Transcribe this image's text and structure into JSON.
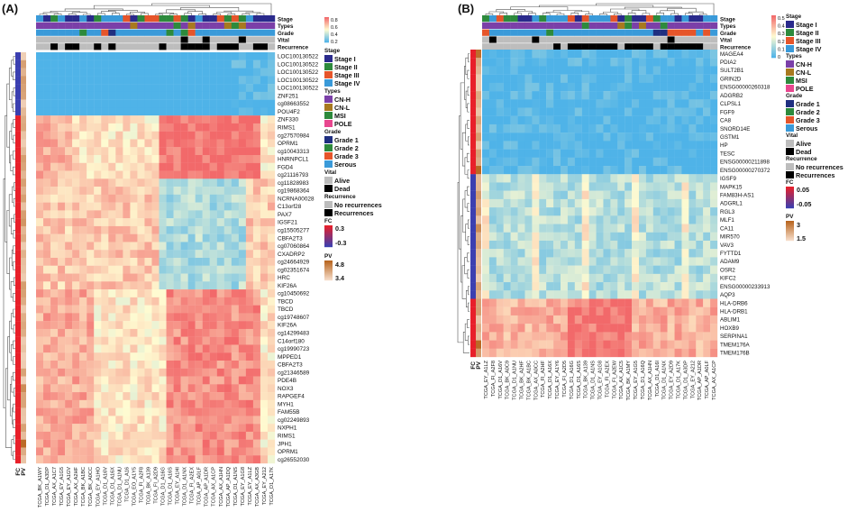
{
  "panelA": {
    "label": "(A)",
    "annotations": [
      "Stage",
      "Types",
      "Grade",
      "Vital",
      "Recurrence"
    ],
    "genes": [
      "LOC100130522",
      "LOC100130522",
      "LOC100130522",
      "LOC100130522",
      "LOC100130522",
      "ZNF251",
      "cg08663552",
      "POU4F2",
      "ZNF330",
      "RIMS1",
      "cg27570984",
      "OPRM1",
      "cg10043313",
      "HNRNPCL1",
      "FGD4",
      "cg21116793",
      "cg11828983",
      "cg19868364",
      "NCRNA00028",
      "C13orf28",
      "PAX7",
      "IGSF21",
      "cg15505277",
      "CBFA2T3",
      "cg07060864",
      "CXADRP2",
      "cg24664929",
      "cg02351674",
      "HRC",
      "KIF26A",
      "cg10450692",
      "TBCD",
      "TBCD",
      "cg19748607",
      "KIF26A",
      "cg14299483",
      "C14orf180",
      "cg19990723",
      "MPPED1",
      "CBFA2T3",
      "cg21346589",
      "PDE4B",
      "NOX3",
      "RAPGEF4",
      "MYH1",
      "FAM55B",
      "cg02249893",
      "NXPH1",
      "RIMS1",
      "JPH1",
      "OPRM1",
      "cg26552030"
    ],
    "samples": [
      "TCGA_BK_A1WY",
      "TCGA_D1_A3DP",
      "TCGA_AX_A1C7",
      "TCGA_EY_A1G5",
      "TCGA_EY_A1GV",
      "TCGA_AX_A2HF",
      "TCGA_BK_A1BC",
      "TCGA_BK_A0CC",
      "TCGA_EY_A1HO",
      "TCGA_D1_A16V",
      "TCGA_D1_A16X",
      "TCGA_D1_A1NU",
      "TCGA_D1_A16",
      "TCGA_EO_A1Y5",
      "TCGA_FI_A2F8",
      "TCGA_BK_A139",
      "TCGA_FI_A2D9",
      "TCGA_D1_A16G",
      "TCGA_D1_A16S",
      "TCGA_EY_A1HI",
      "TCGA_D1_A1NX",
      "TCGA_FI_A2EX",
      "TCGA_AP_A0LF",
      "TCGA_AP_A1DR",
      "TCGA_AX_A1CP",
      "TCGA_AX_A1HN",
      "TCGA_AP_A1DQ",
      "TCGA_D1_A1NS",
      "TCGA_EY_A1G8",
      "TCGA_EY_A1LZ",
      "TCGA_AX_A3GB",
      "TCGA_EY_A212",
      "TCGA_D1_A17K"
    ],
    "side_labels": [
      "PV",
      "FC"
    ],
    "legend": {
      "stage_title": "Stage",
      "stage": [
        "Stage I",
        "Stage II",
        "Stage III",
        "Stage IV"
      ],
      "types_title": "Types",
      "types": [
        "CN-H",
        "CN-L",
        "MSI",
        "POLE"
      ],
      "grade_title": "Grade",
      "grade": [
        "Grade 1",
        "Grade 2",
        "Grade 3",
        "Serous"
      ],
      "vital_title": "Vital",
      "vital": [
        "Alive",
        "Dead"
      ],
      "rec_title": "Recurrence",
      "rec": [
        "No recurrences",
        "Recurrences"
      ],
      "fc_title": "FC",
      "fc_max": "0.3",
      "fc_min": "-0.3",
      "pv_title": "PV",
      "pv_max": "4.8",
      "pv_min": "3.4",
      "scale_ticks": [
        "0.8",
        "0.6",
        "0.4",
        "0.2"
      ]
    }
  },
  "panelB": {
    "label": "(B)",
    "annotations": [
      "Stage",
      "Types",
      "Grade",
      "Vital",
      "Recurrence"
    ],
    "genes": [
      "MAGEA4",
      "PDIA2",
      "SULT2B1",
      "GRIN2D",
      "ENSG00000260318",
      "ADGRB2",
      "CLPSL1",
      "FGF9",
      "CA8",
      "SNORD14E",
      "GSTM1",
      "HP",
      "TESC",
      "ENSG00000211898",
      "ENSG00000270372",
      "IGSF9",
      "MAPK15",
      "FAM83H-AS1",
      "ADGRL1",
      "RGL3",
      "MLF1",
      "CA11",
      "MIR570",
      "VAV3",
      "FYTTD1",
      "ADAM9",
      "OSR2",
      "KIFC2",
      "ENSG00000233913",
      "AQP3",
      "HLA-DRB6",
      "HLA-DRB1",
      "ABLIM1",
      "HOXB9",
      "SERPINA1",
      "TMEM176A",
      "TMEM176B"
    ],
    "samples": [
      "TCGA_EY_A1LZ",
      "TCGA_FI_A2F8",
      "TCGA_D1_A16V",
      "TCGA_BK_A0C9",
      "TCGA_D1_A1NU",
      "TCGA_BK_A2HF",
      "TCGA_BK_A1BC",
      "TCGA_AX_A0CC",
      "TCGA_FI_A2HF",
      "TCGA_D1_A16X",
      "TCGA_EY_A1Y6",
      "TCGA_FI_A2D5",
      "TCGA_D1_A16G",
      "TCGA_D1_A16S",
      "TCGA_BK_A139",
      "TCGA_D1_A1NS",
      "TCGA_EY_A1G8",
      "TCGA_FI_A2EX",
      "TCGA_FI_A2EW",
      "TCGA_AX_A1C5",
      "TCGA_BK_A1MY",
      "TCGA_EY_A1G5",
      "TCGA_D1_A16Q",
      "TCGA_AX_A1HN",
      "TCGA_D1_A16I",
      "TCGA_D1_A1NX",
      "TCGA_EY_A2D9",
      "TCGA_D1_A17K",
      "TCGA_D1_A3DP",
      "TCGA_EY_A212",
      "TCGA_AP_A1DR",
      "TCGA_AP_A0LF",
      "TCGA_AX_A1CP"
    ],
    "side_labels": [
      "PV",
      "FC"
    ],
    "legend": {
      "stage_title": "Stage",
      "stage": [
        "Stage I",
        "Stage II",
        "Stage III",
        "Stage IV"
      ],
      "types_title": "Types",
      "types": [
        "CN-H",
        "CN-L",
        "MSI",
        "POLE"
      ],
      "grade_title": "Grade",
      "grade": [
        "Grade 1",
        "Grade 2",
        "Grade 3",
        "Serous"
      ],
      "vital_title": "Vital",
      "vital": [
        "Alive",
        "Dead"
      ],
      "rec_title": "Recurrence",
      "rec": [
        "No recurrences",
        "Recurrences"
      ],
      "fc_title": "FC",
      "fc_max": "0.05",
      "fc_min": "-0.05",
      "pv_title": "PV",
      "pv_max": "3",
      "pv_min": "1.5",
      "scale_ticks": [
        "0.5",
        "0.4",
        "0.3",
        "0.2",
        "0.1",
        "0"
      ]
    }
  },
  "colors": {
    "stage": [
      "#2a2a8c",
      "#2d8a3c",
      "#e6552a",
      "#3a9ad9"
    ],
    "types": [
      "#7b3fa8",
      "#a8791f",
      "#2d8a3c",
      "#e8478f"
    ],
    "grade": [
      "#1f2f80",
      "#2d8a3c",
      "#e6552a",
      "#3a9ad9"
    ],
    "vital": [
      "#bdbdbd",
      "#000000"
    ],
    "rec": [
      "#bdbdbd",
      "#000000"
    ],
    "fc_high": "#e8202a",
    "fc_low": "#3b3fb0",
    "pv_high": "#b8651f",
    "pv_low": "#f6dcc8",
    "heat_low": "#4fb3e8",
    "heat_mid": "#fffbd1",
    "heat_high": "#f2696a"
  }
}
